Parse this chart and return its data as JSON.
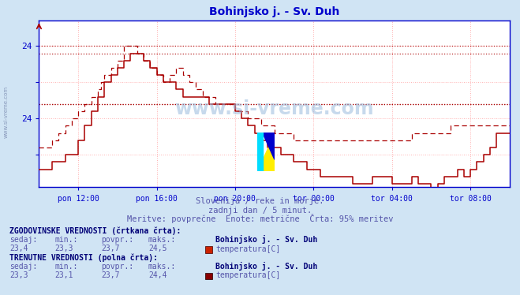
{
  "title": "Bohinjsko j. - Sv. Duh",
  "title_color": "#0000cc",
  "bg_color": "#d0e4f4",
  "plot_bg_color": "#ffffff",
  "grid_color": "#ffb0b0",
  "axis_color": "#0000cc",
  "line_color": "#aa0000",
  "x_labels": [
    "pon 12:00",
    "pon 16:00",
    "pon 20:00",
    "tor 00:00",
    "tor 04:00",
    "tor 08:00"
  ],
  "ytick_labels": [
    "",
    "24",
    "",
    "24"
  ],
  "ytick_vals": [
    23.0,
    23.5,
    24.0,
    24.5
  ],
  "ylim": [
    22.55,
    24.85
  ],
  "hlines": [
    23.7,
    23.7,
    24.5,
    24.4
  ],
  "watermark": "www.si-vreme.com",
  "subtitle1": "Slovenija / reke in morje.",
  "subtitle2": "zadnji dan / 5 minut.",
  "subtitle3": "Meritve: povprečne  Enote: metrične  Črta: 95% meritev",
  "legend_hist_label": "ZGODOVINSKE VREDNOSTI (črtkana črta):",
  "legend_curr_label": "TRENUTNE VREDNOSTI (polna črta):",
  "stat_headers": [
    "sedaj:",
    "min.:",
    "povpr.:",
    "maks.:"
  ],
  "hist_values": [
    "23,4",
    "23,3",
    "23,7",
    "24,5"
  ],
  "curr_values": [
    "23,3",
    "23,1",
    "23,7",
    "24,4"
  ],
  "station_name": "Bohinjsko j. - Sv. Duh",
  "var_name": "temperatura[C]",
  "text_color": "#5555aa",
  "bold_text_color": "#000077",
  "icon_color_hist": "#cc2200",
  "icon_color_curr": "#880000"
}
